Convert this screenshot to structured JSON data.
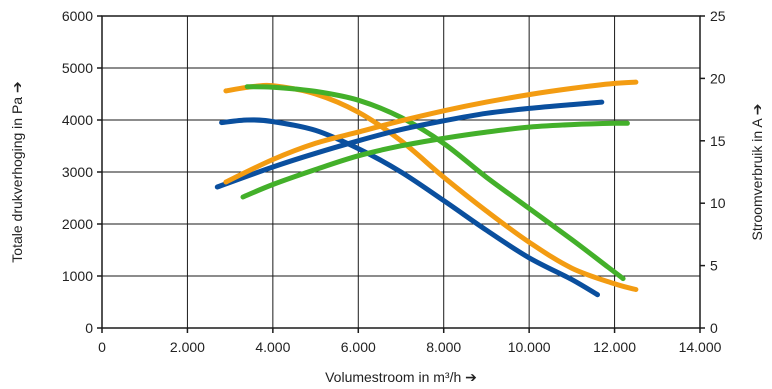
{
  "chart_data": {
    "type": "line",
    "xlabel": "Volumestroom in m³/h ➔",
    "ylabel_left": "Totale drukverhoging in Pa ➔",
    "ylabel_right": "Stroomverbruik in A ➔",
    "xlim": [
      0,
      14000
    ],
    "ylim_left": [
      0,
      6000
    ],
    "ylim_right": [
      0,
      25
    ],
    "x_ticks": [
      0,
      2000,
      4000,
      6000,
      8000,
      10000,
      12000,
      14000
    ],
    "x_tick_labels": [
      "0",
      "2.000",
      "4.000",
      "6.000",
      "8.000",
      "10.000",
      "12.000",
      "14.000"
    ],
    "y_left_ticks": [
      0,
      1000,
      2000,
      3000,
      4000,
      5000,
      6000
    ],
    "y_left_tick_labels": [
      "0",
      "1000",
      "2000",
      "3000",
      "4000",
      "5000",
      "6000"
    ],
    "y_right_ticks": [
      0,
      5,
      10,
      15,
      20,
      25
    ],
    "y_right_tick_labels": [
      "0",
      "5",
      "10",
      "15",
      "20",
      "25"
    ],
    "grid": true,
    "series": [
      {
        "axis": "left",
        "color": "#0a4f9e",
        "points": [
          [
            2800,
            3950
          ],
          [
            3400,
            4000
          ],
          [
            4000,
            3970
          ],
          [
            5000,
            3800
          ],
          [
            6000,
            3450
          ],
          [
            7000,
            3000
          ],
          [
            8000,
            2450
          ],
          [
            9000,
            1880
          ],
          [
            10000,
            1350
          ],
          [
            11000,
            930
          ],
          [
            11600,
            640
          ]
        ]
      },
      {
        "axis": "left",
        "color": "#f39c12",
        "points": [
          [
            2900,
            4560
          ],
          [
            3600,
            4650
          ],
          [
            4100,
            4650
          ],
          [
            5000,
            4500
          ],
          [
            6000,
            4150
          ],
          [
            7000,
            3600
          ],
          [
            8000,
            2900
          ],
          [
            9000,
            2250
          ],
          [
            10000,
            1650
          ],
          [
            11000,
            1150
          ],
          [
            12000,
            850
          ],
          [
            12500,
            740
          ]
        ]
      },
      {
        "axis": "left",
        "color": "#43b02a",
        "points": [
          [
            3400,
            4640
          ],
          [
            4000,
            4630
          ],
          [
            5000,
            4550
          ],
          [
            6000,
            4380
          ],
          [
            7000,
            4050
          ],
          [
            8000,
            3550
          ],
          [
            9000,
            2900
          ],
          [
            10000,
            2300
          ],
          [
            11000,
            1700
          ],
          [
            11800,
            1200
          ],
          [
            12200,
            950
          ]
        ]
      },
      {
        "axis": "right",
        "color": "#0a4f9e",
        "points": [
          [
            2700,
            11.3
          ],
          [
            4000,
            12.9
          ],
          [
            5000,
            14.0
          ],
          [
            6000,
            15.0
          ],
          [
            7000,
            15.9
          ],
          [
            8000,
            16.6
          ],
          [
            9000,
            17.2
          ],
          [
            10000,
            17.6
          ],
          [
            11000,
            17.9
          ],
          [
            11700,
            18.1
          ]
        ]
      },
      {
        "axis": "right",
        "color": "#f39c12",
        "points": [
          [
            2900,
            11.7
          ],
          [
            4000,
            13.5
          ],
          [
            5000,
            14.8
          ],
          [
            6000,
            15.7
          ],
          [
            7000,
            16.6
          ],
          [
            8000,
            17.4
          ],
          [
            9000,
            18.1
          ],
          [
            10000,
            18.7
          ],
          [
            11000,
            19.2
          ],
          [
            12000,
            19.6
          ],
          [
            12500,
            19.7
          ]
        ]
      },
      {
        "axis": "right",
        "color": "#43b02a",
        "points": [
          [
            3300,
            10.5
          ],
          [
            4000,
            11.5
          ],
          [
            5000,
            12.7
          ],
          [
            6000,
            13.8
          ],
          [
            7000,
            14.6
          ],
          [
            8000,
            15.2
          ],
          [
            9000,
            15.7
          ],
          [
            10000,
            16.1
          ],
          [
            11000,
            16.3
          ],
          [
            12000,
            16.4
          ],
          [
            12300,
            16.4
          ]
        ]
      }
    ]
  }
}
